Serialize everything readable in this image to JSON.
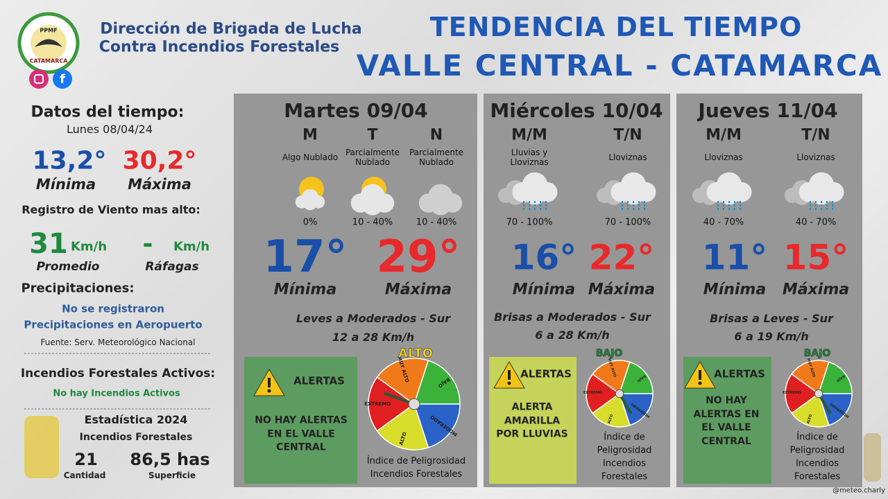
{
  "header": {
    "logo_top": "PPMF",
    "logo_bottom": "CATAMARCA",
    "org_line1": "Dirección de Brigada de Lucha",
    "org_line2": "Contra Incendios Forestales",
    "title_line1": "TENDENCIA DEL TIEMPO",
    "title_line2": "VALLE CENTRAL - CATAMARCA"
  },
  "left": {
    "heading": "Datos del tiempo:",
    "date": "Lunes 08/04/24",
    "min": "13,2°",
    "min_label": "Mínima",
    "max": "30,2°",
    "max_label": "Máxima",
    "wind_heading": "Registro de Viento mas alto:",
    "wind_avg": "31",
    "wind_avg_unit": "Km/h",
    "wind_avg_label": "Promedio",
    "gust": "-",
    "gust_unit": "Km/h",
    "gust_label": "Ráfagas",
    "precip_heading": "Precipitaciones:",
    "precip_line1": "No se registraron",
    "precip_line2": "Precipitaciones en Aeropuerto",
    "source": "Fuente: Serv. Meteorológico Nacional",
    "fires_heading": "Incendios Forestales Activos:",
    "fires_text": "No hay Incendios Activos",
    "stats_heading": "Estadística 2024",
    "stats_sub": "Incendios Forestales",
    "count": "21",
    "count_label": "Cantidad",
    "area": "86,5 has",
    "area_label": "Superficie"
  },
  "gauge_labels": [
    "EXTREMO",
    "MUY ALTO",
    "BAJO",
    "MODERADO",
    "ALTO"
  ],
  "days": [
    {
      "title": "Martes 09/04",
      "periods": [
        {
          "label": "M",
          "sky": "Algo Nublado",
          "prob": "0%"
        },
        {
          "label": "T",
          "sky": "Parcialmente Nublado",
          "prob": "10 - 40%"
        },
        {
          "label": "N",
          "sky": "Parcialmente Nublado",
          "prob": "10 - 40%"
        }
      ],
      "min": "17°",
      "min_label": "Mínima",
      "max": "29°",
      "max_label": "Máxima",
      "wind": "Leves a Moderados - Sur",
      "wind_speed": "12 a 28 Km/h",
      "alert_heading": "ALERTAS",
      "alert_text": "NO HAY ALERTAS EN EL VALLE CENTRAL",
      "risk_level": "ALTO",
      "risk_label": "Índice de Peligrosidad Incendios Forestales"
    },
    {
      "title": "Miércoles 10/04",
      "periods": [
        {
          "label": "M/M",
          "sky": "Lluvias y Lloviznas",
          "prob": "70 - 100%"
        },
        {
          "label": "T/N",
          "sky": "Lloviznas",
          "prob": "70 - 100%"
        }
      ],
      "min": "16°",
      "min_label": "Mínima",
      "max": "22°",
      "max_label": "Máxima",
      "wind": "Brisas a Moderados - Sur",
      "wind_speed": "6 a 28 Km/h",
      "alert_heading": "ALERTAS",
      "alert_text": "ALERTA AMARILLA POR LLUVIAS",
      "risk_level": "BAJO",
      "risk_label": "Índice de Peligrosidad Incendios Forestales"
    },
    {
      "title": "Jueves 11/04",
      "periods": [
        {
          "label": "M/M",
          "sky": "Lloviznas",
          "prob": "40 - 70%"
        },
        {
          "label": "T/N",
          "sky": "Lloviznas",
          "prob": "40 - 70%"
        }
      ],
      "min": "11°",
      "min_label": "Mínima",
      "max": "15°",
      "max_label": "Máxima",
      "wind": "Brisas a Leves - Sur",
      "wind_speed": "6 a 19 Km/h",
      "alert_heading": "ALERTAS",
      "alert_text": "NO HAY ALERTAS EN EL VALLE CENTRAL",
      "risk_level": "BAJO",
      "risk_label": "Índice de Peligrosidad Incendios Forestales"
    }
  ],
  "credit": "@meteo.charly"
}
